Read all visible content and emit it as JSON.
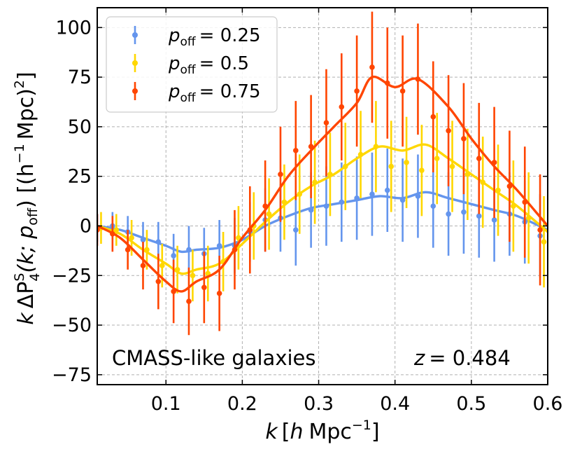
{
  "chart_data": {
    "type": "line",
    "title": "",
    "xlabel_parts": {
      "k": "k",
      "h": "h",
      "mpc": "Mpc",
      "exp": "−1"
    },
    "ylabel_parts": {
      "k": "k",
      "delta": "ΔP",
      "sup": "S",
      "sub": "4",
      "args": "(k; p",
      "off": "off",
      "rest": ") [(h",
      "mpc": "Mpc)",
      "exp": "−1",
      "exp2": "2",
      "close": "]"
    },
    "xlim": [
      0.01,
      0.6
    ],
    "ylim": [
      -80,
      110
    ],
    "xticks": [
      0.1,
      0.2,
      0.3,
      0.4,
      0.5,
      0.6
    ],
    "xtick_labels": [
      "0.1",
      "0.2",
      "0.3",
      "0.4",
      "0.5",
      "0.6"
    ],
    "yticks": [
      -75,
      -50,
      -25,
      0,
      25,
      50,
      75,
      100
    ],
    "ytick_labels": [
      "−75",
      "−50",
      "−25",
      "0",
      "25",
      "50",
      "75",
      "100"
    ],
    "grid": true,
    "legend_location": "top-left",
    "annotations": {
      "left": "CMASS-like galaxies",
      "right_prefix": "z",
      "right_value": "= 0.484"
    },
    "series": [
      {
        "name": "p_off = 0.25",
        "legend_sub": "off",
        "legend_value": "= 0.25",
        "color": "#6495ED",
        "model_x": [
          0.01,
          0.04,
          0.07,
          0.1,
          0.12,
          0.14,
          0.17,
          0.2,
          0.23,
          0.26,
          0.29,
          0.32,
          0.35,
          0.38,
          0.41,
          0.44,
          0.47,
          0.5,
          0.53,
          0.56,
          0.6
        ],
        "model_y": [
          0,
          -2,
          -6,
          -10,
          -13,
          -12,
          -11,
          -7,
          0,
          5,
          9,
          11,
          13,
          15,
          14,
          17,
          14,
          11,
          8,
          5,
          -2
        ],
        "points_x": [
          0.01,
          0.03,
          0.05,
          0.07,
          0.09,
          0.11,
          0.13,
          0.15,
          0.17,
          0.19,
          0.21,
          0.23,
          0.25,
          0.27,
          0.29,
          0.31,
          0.33,
          0.35,
          0.37,
          0.39,
          0.41,
          0.43,
          0.45,
          0.47,
          0.49,
          0.51,
          0.53,
          0.55,
          0.57,
          0.59
        ],
        "points_y": [
          -1,
          0,
          -3,
          -7,
          -8,
          -15,
          -12,
          -14,
          -10,
          -10,
          -3,
          3,
          4,
          -2,
          8,
          10,
          12,
          14,
          16,
          18,
          13,
          15,
          10,
          6,
          7,
          5,
          3,
          6,
          2,
          -5
        ],
        "err": [
          7,
          7,
          8,
          9,
          10,
          11,
          12,
          13,
          13,
          14,
          15,
          16,
          17,
          18,
          19,
          20,
          20,
          21,
          21,
          21,
          21,
          21,
          21,
          21,
          21,
          21,
          21,
          21,
          21,
          21
        ]
      },
      {
        "name": "p_off = 0.5",
        "legend_sub": "off",
        "legend_value": "= 0.5",
        "color": "#FFD700",
        "model_x": [
          0.01,
          0.04,
          0.07,
          0.1,
          0.12,
          0.14,
          0.17,
          0.2,
          0.23,
          0.26,
          0.29,
          0.32,
          0.35,
          0.38,
          0.41,
          0.44,
          0.47,
          0.5,
          0.53,
          0.56,
          0.6
        ],
        "model_y": [
          0,
          -4,
          -12,
          -19,
          -24,
          -22,
          -19,
          -9,
          2,
          12,
          20,
          26,
          34,
          40,
          38,
          41,
          34,
          26,
          18,
          10,
          -3
        ],
        "points_x": [
          0.015,
          0.035,
          0.055,
          0.075,
          0.095,
          0.115,
          0.135,
          0.155,
          0.175,
          0.195,
          0.215,
          0.235,
          0.255,
          0.275,
          0.295,
          0.315,
          0.335,
          0.355,
          0.375,
          0.395,
          0.415,
          0.435,
          0.455,
          0.475,
          0.495,
          0.515,
          0.535,
          0.555,
          0.575,
          0.595
        ],
        "points_y": [
          -1,
          -2,
          -6,
          -12,
          -20,
          -22,
          -25,
          -24,
          -18,
          -6,
          0,
          6,
          12,
          16,
          22,
          26,
          30,
          36,
          40,
          30,
          32,
          28,
          34,
          30,
          26,
          22,
          18,
          10,
          4,
          -8
        ],
        "err": [
          8,
          8,
          9,
          10,
          11,
          12,
          13,
          14,
          15,
          16,
          17,
          18,
          19,
          20,
          21,
          21,
          22,
          22,
          23,
          23,
          23,
          23,
          23,
          23,
          23,
          23,
          23,
          23,
          23,
          23
        ]
      },
      {
        "name": "p_off = 0.75",
        "legend_sub": "off",
        "legend_value": "= 0.75",
        "color": "#FF4500",
        "model_x": [
          0.01,
          0.04,
          0.07,
          0.1,
          0.12,
          0.14,
          0.17,
          0.2,
          0.23,
          0.26,
          0.29,
          0.32,
          0.35,
          0.37,
          0.4,
          0.43,
          0.47,
          0.5,
          0.53,
          0.56,
          0.6
        ],
        "model_y": [
          0,
          -6,
          -17,
          -28,
          -33,
          -28,
          -22,
          -6,
          8,
          25,
          38,
          50,
          62,
          75,
          70,
          74,
          60,
          44,
          30,
          18,
          0
        ],
        "points_x": [
          0.01,
          0.03,
          0.05,
          0.07,
          0.09,
          0.11,
          0.13,
          0.15,
          0.17,
          0.19,
          0.21,
          0.23,
          0.25,
          0.27,
          0.29,
          0.31,
          0.33,
          0.35,
          0.37,
          0.39,
          0.41,
          0.43,
          0.45,
          0.47,
          0.49,
          0.51,
          0.53,
          0.55,
          0.57,
          0.59
        ],
        "points_y": [
          -2,
          -4,
          -12,
          -20,
          -28,
          -33,
          -38,
          -31,
          -34,
          -12,
          -2,
          10,
          26,
          38,
          40,
          52,
          60,
          68,
          80,
          72,
          68,
          74,
          55,
          48,
          44,
          34,
          32,
          20,
          12,
          -2
        ],
        "err": [
          8,
          9,
          10,
          12,
          14,
          16,
          17,
          18,
          19,
          20,
          22,
          23,
          24,
          25,
          26,
          27,
          27,
          28,
          28,
          28,
          28,
          28,
          28,
          28,
          28,
          28,
          28,
          28,
          28,
          28
        ]
      }
    ]
  }
}
